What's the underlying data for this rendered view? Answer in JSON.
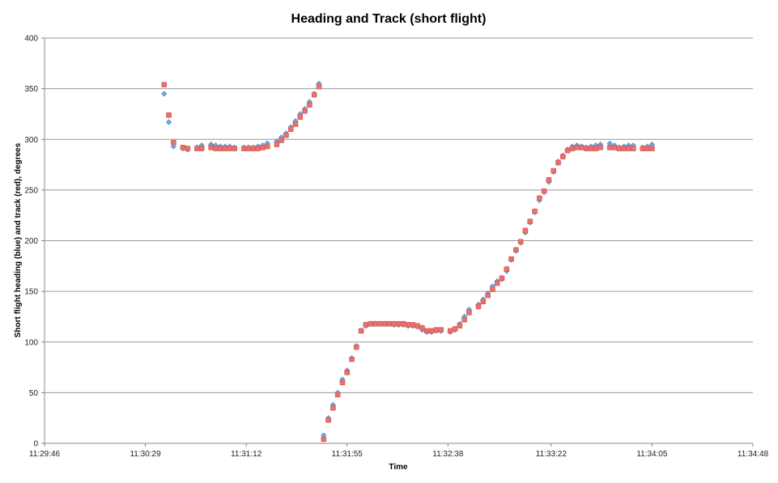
{
  "chart_data": {
    "type": "scatter",
    "title": "Heading and Track (short flight)",
    "xlabel": "Time",
    "ylabel": "Short flight heading (blue) and track (red), degrees",
    "x_tick_labels": [
      "11:29:46",
      "11:30:29",
      "11:31:12",
      "11:31:55",
      "11:32:38",
      "11:33:22",
      "11:34:05",
      "11:34:48"
    ],
    "xlim": [
      "11:29:46",
      "11:34:48"
    ],
    "ylim": [
      0,
      400
    ],
    "y_ticks": [
      0,
      50,
      100,
      150,
      200,
      250,
      300,
      350,
      400
    ],
    "grid": "horizontal",
    "legend": "none",
    "colors": {
      "heading": "#6FA8DC",
      "track": "#E8716D",
      "grid": "#999999"
    },
    "series": [
      {
        "x": [
          "11:30:37",
          "11:30:39",
          "11:30:41",
          "11:30:45",
          "11:30:47",
          "11:30:51",
          "11:30:53",
          "11:30:57",
          "11:30:59",
          "11:31:01",
          "11:31:03",
          "11:31:05",
          "11:31:07",
          "11:31:11",
          "11:31:13",
          "11:31:15",
          "11:31:17",
          "11:31:19",
          "11:31:21",
          "11:31:25",
          "11:31:27",
          "11:31:29",
          "11:31:31",
          "11:31:33",
          "11:31:35",
          "11:31:37",
          "11:31:39",
          "11:31:41",
          "11:31:43",
          "11:31:45",
          "11:31:47",
          "11:31:49",
          "11:31:51",
          "11:31:53",
          "11:31:55",
          "11:31:57",
          "11:31:59",
          "11:32:01",
          "11:32:03",
          "11:32:05",
          "11:32:07",
          "11:32:09",
          "11:32:11",
          "11:32:13",
          "11:32:15",
          "11:32:17",
          "11:32:19",
          "11:32:21",
          "11:32:23",
          "11:32:25",
          "11:32:27",
          "11:32:29",
          "11:32:31",
          "11:32:33",
          "11:32:35",
          "11:32:39",
          "11:32:41",
          "11:32:43",
          "11:32:45",
          "11:32:47",
          "11:32:51",
          "11:32:53",
          "11:32:55",
          "11:32:57",
          "11:32:59",
          "11:33:01",
          "11:33:03",
          "11:33:05",
          "11:33:07",
          "11:33:09",
          "11:33:11",
          "11:33:13",
          "11:33:15",
          "11:33:17",
          "11:33:19",
          "11:33:21",
          "11:33:23",
          "11:33:25",
          "11:33:27",
          "11:33:29",
          "11:33:31",
          "11:33:33",
          "11:33:35",
          "11:33:37",
          "11:33:39",
          "11:33:41",
          "11:33:43",
          "11:33:47",
          "11:33:49",
          "11:33:51",
          "11:33:53",
          "11:33:55",
          "11:33:57",
          "11:34:01",
          "11:34:03",
          "11:34:05"
        ],
        "values": [
          345,
          317,
          293,
          291,
          290,
          292,
          294,
          295,
          294,
          293,
          293,
          293,
          292,
          292,
          292,
          292,
          293,
          294,
          296,
          298,
          302,
          306,
          312,
          318,
          325,
          330,
          337,
          345,
          355,
          8,
          25,
          38,
          50,
          63,
          72,
          84,
          96,
          111,
          116,
          118,
          118,
          118,
          118,
          118,
          117,
          117,
          117,
          116,
          116,
          115,
          112,
          110,
          110,
          111,
          111,
          110,
          112,
          118,
          125,
          132,
          137,
          142,
          148,
          155,
          160,
          162,
          170,
          181,
          190,
          198,
          208,
          218,
          228,
          240,
          248,
          258,
          268,
          278,
          284,
          290,
          293,
          294,
          293,
          292,
          293,
          294,
          295,
          296,
          294,
          292,
          293,
          294,
          294,
          292,
          293,
          295
        ]
      },
      {
        "x": [
          "11:30:37",
          "11:30:39",
          "11:30:41",
          "11:30:45",
          "11:30:47",
          "11:30:51",
          "11:30:53",
          "11:30:57",
          "11:30:59",
          "11:31:01",
          "11:31:03",
          "11:31:05",
          "11:31:07",
          "11:31:11",
          "11:31:13",
          "11:31:15",
          "11:31:17",
          "11:31:19",
          "11:31:21",
          "11:31:25",
          "11:31:27",
          "11:31:29",
          "11:31:31",
          "11:31:33",
          "11:31:35",
          "11:31:37",
          "11:31:39",
          "11:31:41",
          "11:31:43",
          "11:31:45",
          "11:31:47",
          "11:31:49",
          "11:31:51",
          "11:31:53",
          "11:31:55",
          "11:31:57",
          "11:31:59",
          "11:32:01",
          "11:32:03",
          "11:32:05",
          "11:32:07",
          "11:32:09",
          "11:32:11",
          "11:32:13",
          "11:32:15",
          "11:32:17",
          "11:32:19",
          "11:32:21",
          "11:32:23",
          "11:32:25",
          "11:32:27",
          "11:32:29",
          "11:32:31",
          "11:32:33",
          "11:32:35",
          "11:32:39",
          "11:32:41",
          "11:32:43",
          "11:32:45",
          "11:32:47",
          "11:32:51",
          "11:32:53",
          "11:32:55",
          "11:32:57",
          "11:32:59",
          "11:33:01",
          "11:33:03",
          "11:33:05",
          "11:33:07",
          "11:33:09",
          "11:33:11",
          "11:33:13",
          "11:33:15",
          "11:33:17",
          "11:33:19",
          "11:33:21",
          "11:33:23",
          "11:33:25",
          "11:33:27",
          "11:33:29",
          "11:33:31",
          "11:33:33",
          "11:33:35",
          "11:33:37",
          "11:33:39",
          "11:33:41",
          "11:33:43",
          "11:33:47",
          "11:33:49",
          "11:33:51",
          "11:33:53",
          "11:33:55",
          "11:33:57",
          "11:34:01",
          "11:34:03",
          "11:34:05"
        ],
        "values": [
          354,
          324,
          297,
          292,
          291,
          291,
          291,
          292,
          291,
          291,
          291,
          291,
          291,
          291,
          291,
          291,
          291,
          292,
          293,
          295,
          299,
          304,
          310,
          315,
          322,
          328,
          334,
          344,
          352,
          4,
          23,
          35,
          48,
          60,
          70,
          83,
          95,
          111,
          117,
          118,
          118,
          118,
          118,
          118,
          118,
          118,
          118,
          117,
          117,
          116,
          114,
          111,
          111,
          112,
          112,
          111,
          113,
          116,
          122,
          129,
          135,
          140,
          146,
          152,
          158,
          163,
          172,
          182,
          191,
          199,
          210,
          219,
          229,
          242,
          249,
          260,
          269,
          277,
          283,
          289,
          291,
          292,
          292,
          291,
          291,
          291,
          292,
          292,
          292,
          291,
          291,
          291,
          291,
          291,
          291,
          291
        ]
      }
    ]
  }
}
